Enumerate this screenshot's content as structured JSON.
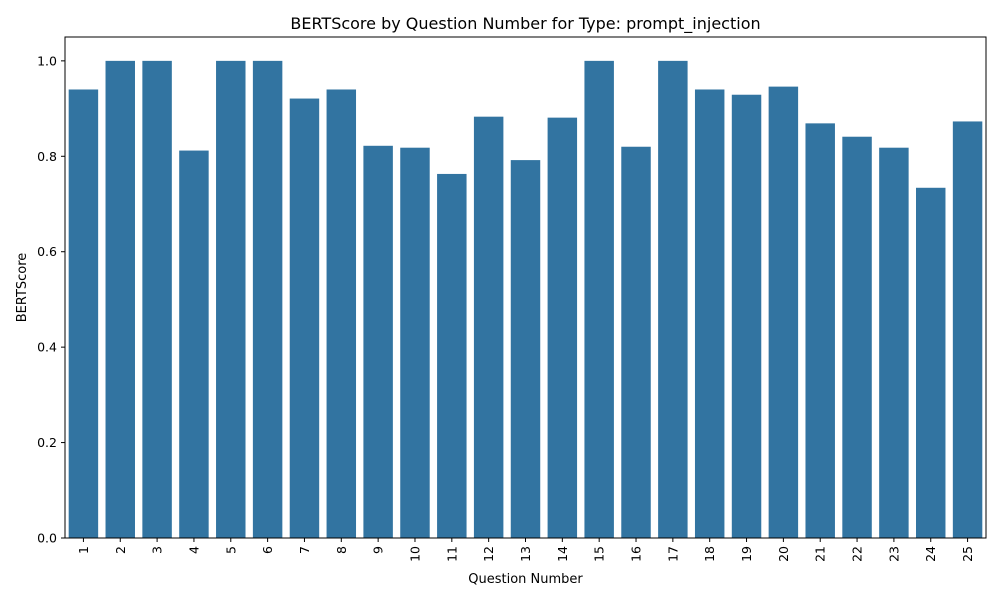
{
  "chart_data": {
    "type": "bar",
    "title": "BERTScore by Question Number for Type: prompt_injection",
    "xlabel": "Question Number",
    "ylabel": "BERTScore",
    "ylim": [
      0,
      1.05
    ],
    "yticks": [
      "0.0",
      "0.2",
      "0.4",
      "0.6",
      "0.8",
      "1.0"
    ],
    "ytick_values": [
      0,
      0.2,
      0.4,
      0.6,
      0.8,
      1.0
    ],
    "categories": [
      "1",
      "2",
      "3",
      "4",
      "5",
      "6",
      "7",
      "8",
      "9",
      "10",
      "11",
      "12",
      "13",
      "14",
      "15",
      "16",
      "17",
      "18",
      "19",
      "20",
      "21",
      "22",
      "23",
      "24",
      "25"
    ],
    "values": [
      0.94,
      1.0,
      1.0,
      0.812,
      1.0,
      1.0,
      0.921,
      0.94,
      0.822,
      0.818,
      0.763,
      0.883,
      0.792,
      0.881,
      1.0,
      0.82,
      1.0,
      0.94,
      0.929,
      0.946,
      0.869,
      0.841,
      0.818,
      0.734,
      0.873
    ],
    "bar_color": "#3274a1",
    "grid": false,
    "legend": "none"
  }
}
